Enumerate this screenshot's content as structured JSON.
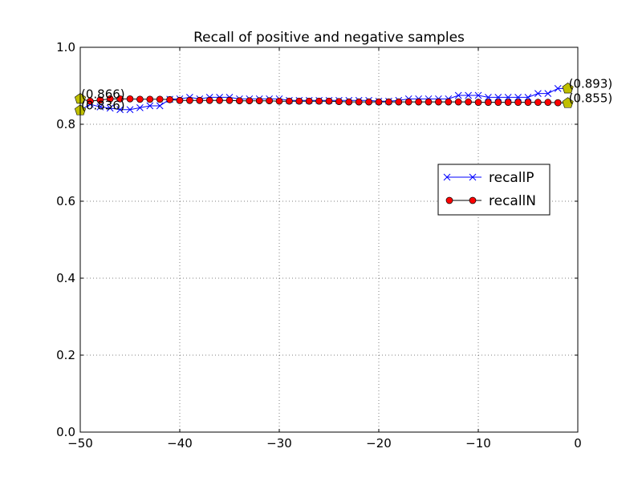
{
  "chart_data": {
    "type": "line",
    "title": "Recall of positive and negative samples",
    "xlabel": "",
    "ylabel": "",
    "xlim": [
      -50,
      0
    ],
    "ylim": [
      0.0,
      1.0
    ],
    "x_ticks": [
      -50,
      -40,
      -30,
      -20,
      -10,
      0
    ],
    "x_tick_labels": [
      "−50",
      "−40",
      "−30",
      "−20",
      "−10",
      "0"
    ],
    "y_ticks": [
      0.0,
      0.2,
      0.4,
      0.6,
      0.8,
      1.0
    ],
    "y_tick_labels": [
      "0.0",
      "0.2",
      "0.4",
      "0.6",
      "0.8",
      "1.0"
    ],
    "grid": true,
    "legend": {
      "position": "center-right"
    },
    "x": [
      -50,
      -49,
      -48,
      -47,
      -46,
      -45,
      -44,
      -43,
      -42,
      -41,
      -40,
      -39,
      -38,
      -37,
      -36,
      -35,
      -34,
      -33,
      -32,
      -31,
      -30,
      -29,
      -28,
      -27,
      -26,
      -25,
      -24,
      -23,
      -22,
      -21,
      -20,
      -19,
      -18,
      -17,
      -16,
      -15,
      -14,
      -13,
      -12,
      -11,
      -10,
      -9,
      -8,
      -7,
      -6,
      -5,
      -4,
      -3,
      -2,
      -1
    ],
    "series": [
      {
        "name": "recallP",
        "color": "#0000ff",
        "marker": "x",
        "values": [
          0.836,
          0.852,
          0.845,
          0.842,
          0.838,
          0.838,
          0.843,
          0.848,
          0.848,
          0.865,
          0.866,
          0.87,
          0.866,
          0.87,
          0.87,
          0.87,
          0.866,
          0.866,
          0.866,
          0.866,
          0.866,
          0.862,
          0.862,
          0.862,
          0.862,
          0.862,
          0.862,
          0.862,
          0.862,
          0.862,
          0.86,
          0.86,
          0.862,
          0.866,
          0.866,
          0.866,
          0.866,
          0.866,
          0.875,
          0.875,
          0.875,
          0.87,
          0.87,
          0.87,
          0.87,
          0.87,
          0.88,
          0.88,
          0.893,
          0.893
        ]
      },
      {
        "name": "recallN",
        "color": "#ff0000",
        "marker": "o",
        "values": [
          0.866,
          0.86,
          0.863,
          0.866,
          0.866,
          0.866,
          0.865,
          0.865,
          0.865,
          0.864,
          0.862,
          0.862,
          0.862,
          0.862,
          0.862,
          0.862,
          0.861,
          0.861,
          0.861,
          0.861,
          0.86,
          0.86,
          0.86,
          0.86,
          0.86,
          0.86,
          0.859,
          0.858,
          0.858,
          0.858,
          0.858,
          0.858,
          0.858,
          0.858,
          0.858,
          0.858,
          0.858,
          0.858,
          0.858,
          0.858,
          0.857,
          0.857,
          0.857,
          0.857,
          0.857,
          0.857,
          0.857,
          0.857,
          0.856,
          0.855
        ]
      }
    ],
    "highlight_color": "#bfbf00",
    "annotations": [
      {
        "x": -50,
        "y": 0.866,
        "text": "(0.866)"
      },
      {
        "x": -50,
        "y": 0.836,
        "text": "(0.836)"
      },
      {
        "x": -1,
        "y": 0.893,
        "text": "(0.893)"
      },
      {
        "x": -1,
        "y": 0.855,
        "text": "(0.855)"
      }
    ]
  }
}
